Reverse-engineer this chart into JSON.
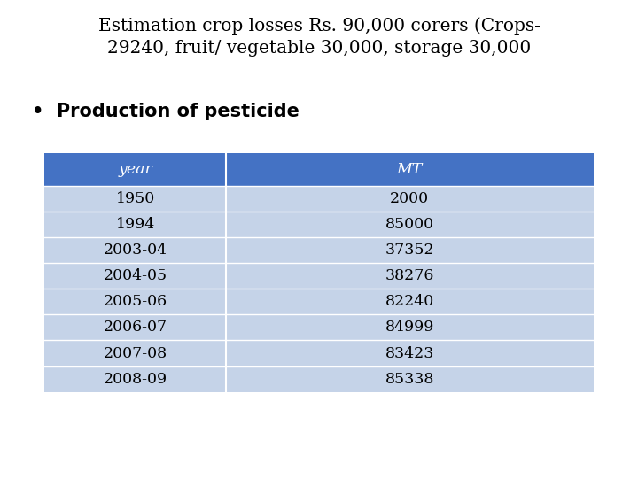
{
  "title_line1": "Estimation crop losses Rs. 90,000 corers (Crops-",
  "title_line2": "29240, fruit/ vegetable 30,000, storage 30,000",
  "bullet_text": "Production of pesticide",
  "header": [
    "year",
    "MT"
  ],
  "rows": [
    [
      "1950",
      "2000"
    ],
    [
      "1994",
      "85000"
    ],
    [
      "2003-04",
      "37352"
    ],
    [
      "2004-05",
      "38276"
    ],
    [
      "2005-06",
      "82240"
    ],
    [
      "2006-07",
      "84999"
    ],
    [
      "2007-08",
      "83423"
    ],
    [
      "2008-09",
      "85338"
    ]
  ],
  "header_bg": "#4472C4",
  "header_text_color": "#FFFFFF",
  "row_bg": "#C5D3E8",
  "row_text_color": "#000000",
  "bg_color": "#FFFFFF",
  "title_fontsize": 14.5,
  "bullet_fontsize": 15,
  "table_fontsize": 12.5,
  "col_split": 0.33
}
